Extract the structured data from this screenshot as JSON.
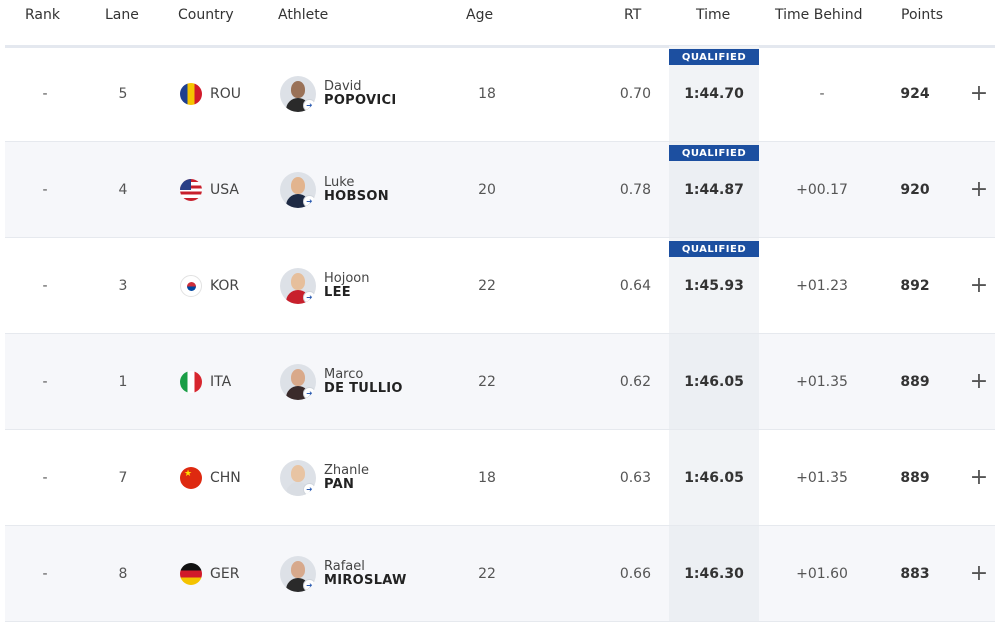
{
  "columns": {
    "rank": "Rank",
    "lane": "Lane",
    "country": "Country",
    "athlete": "Athlete",
    "age": "Age",
    "rt": "RT",
    "time": "Time",
    "time_behind": "Time Behind",
    "points": "Points"
  },
  "colors": {
    "qualified_badge": "#1c4fa0"
  },
  "rows": [
    {
      "rank": "-",
      "lane": "5",
      "country": "ROU",
      "flag": "romania-flag",
      "first": "David",
      "last": "POPOVICI",
      "age": "18",
      "rt": "0.70",
      "time": "1:44.70",
      "behind": "-",
      "points": "924",
      "status": "QUALIFIED",
      "expand": "+",
      "skin": "#9a7258",
      "shirt": "#2a2a2a"
    },
    {
      "rank": "-",
      "lane": "4",
      "country": "USA",
      "flag": "usa-flag",
      "first": "Luke",
      "last": "HOBSON",
      "age": "20",
      "rt": "0.78",
      "time": "1:44.87",
      "behind": "+00.17",
      "points": "920",
      "status": "QUALIFIED",
      "expand": "+",
      "skin": "#e2b48e",
      "shirt": "#1e2a44"
    },
    {
      "rank": "-",
      "lane": "3",
      "country": "KOR",
      "flag": "korea-flag",
      "first": "Hojoon",
      "last": "LEE",
      "age": "22",
      "rt": "0.64",
      "time": "1:45.93",
      "behind": "+01.23",
      "points": "892",
      "status": "QUALIFIED",
      "expand": "+",
      "skin": "#e6bf9c",
      "shirt": "#c8202c"
    },
    {
      "rank": "-",
      "lane": "1",
      "country": "ITA",
      "flag": "italy-flag",
      "first": "Marco",
      "last": "DE TULLIO",
      "age": "22",
      "rt": "0.62",
      "time": "1:46.05",
      "behind": "+01.35",
      "points": "889",
      "status": "",
      "expand": "+",
      "skin": "#d9a98a",
      "shirt": "#3a2a2a"
    },
    {
      "rank": "-",
      "lane": "7",
      "country": "CHN",
      "flag": "china-flag",
      "first": "Zhanle",
      "last": "PAN",
      "age": "18",
      "rt": "0.63",
      "time": "1:46.05",
      "behind": "+01.35",
      "points": "889",
      "status": "",
      "expand": "+",
      "skin": "#e8c4a3",
      "shirt": "#d9dde3"
    },
    {
      "rank": "-",
      "lane": "8",
      "country": "GER",
      "flag": "germany-flag",
      "first": "Rafael",
      "last": "MIROSLAW",
      "age": "22",
      "rt": "0.66",
      "time": "1:46.30",
      "behind": "+01.60",
      "points": "883",
      "status": "",
      "expand": "+",
      "skin": "#d7a98c",
      "shirt": "#2a2a2a"
    }
  ]
}
